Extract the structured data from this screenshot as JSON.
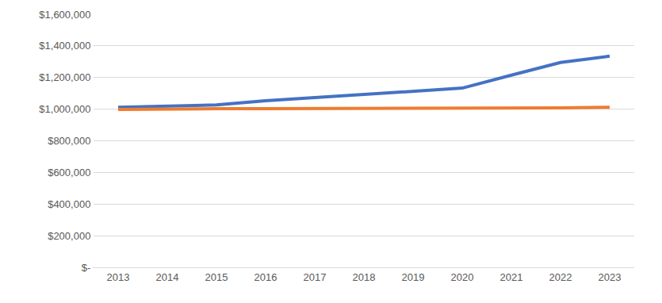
{
  "chart_data": {
    "type": "line",
    "categories": [
      "2013",
      "2014",
      "2015",
      "2016",
      "2017",
      "2018",
      "2019",
      "2020",
      "2021",
      "2022",
      "2023"
    ],
    "series": [
      {
        "color": "#4472c4",
        "values": [
          1012000,
          1022000,
          1027000,
          1053000,
          1073000,
          1093000,
          1118000,
          1133000,
          1215000,
          1295000,
          1335000
        ]
      },
      {
        "color": "#ed7d31",
        "values": [
          998000,
          1002000,
          1003000,
          1003000,
          1003000,
          1003000,
          1003000,
          1006000,
          1007000,
          1008000,
          1012000
        ]
      }
    ],
    "ylim": [
      0,
      1600000
    ],
    "yticks": [
      {
        "value": 0,
        "label": "$-"
      },
      {
        "value": 200000,
        "label": "$200,000"
      },
      {
        "value": 400000,
        "label": "$400,000"
      },
      {
        "value": 600000,
        "label": "$600,000"
      },
      {
        "value": 800000,
        "label": "$800,000"
      },
      {
        "value": 1000000,
        "label": "$1,000,000"
      },
      {
        "value": 1200000,
        "label": "$1,200,000"
      },
      {
        "value": 1400000,
        "label": "$1,400,000"
      },
      {
        "value": 1600000,
        "label": "$1,600,000"
      }
    ],
    "grid": true
  }
}
